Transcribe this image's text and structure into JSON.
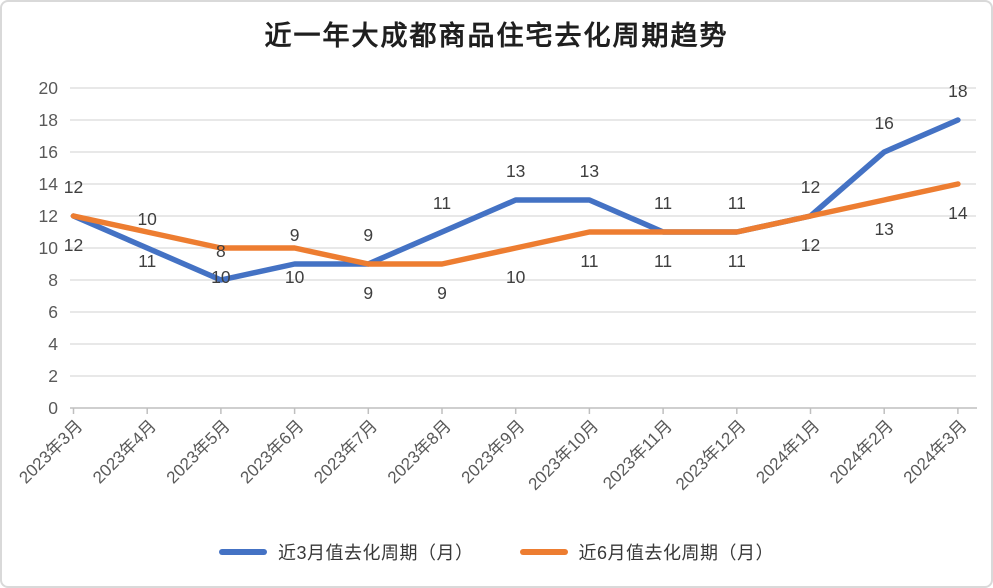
{
  "title": "近一年大成都商品住宅去化周期趋势",
  "chart_data": {
    "type": "line",
    "title": "近一年大成都商品住宅去化周期趋势",
    "categories": [
      "2023年3月",
      "2023年4月",
      "2023年5月",
      "2023年6月",
      "2023年7月",
      "2023年8月",
      "2023年9月",
      "2023年10月",
      "2023年11月",
      "2023年12月",
      "2024年1月",
      "2024年2月",
      "2024年3月"
    ],
    "series": [
      {
        "name": "近3月值去化周期（月）",
        "color": "#4472C4",
        "values": [
          12,
          10,
          8,
          9,
          9,
          11,
          13,
          13,
          11,
          11,
          12,
          16,
          18
        ],
        "label_position": "above"
      },
      {
        "name": "近6月值去化周期（月）",
        "color": "#ED7D31",
        "values": [
          12,
          11,
          10,
          10,
          9,
          9,
          10,
          11,
          11,
          11,
          12,
          13,
          14
        ],
        "label_position": "below"
      }
    ],
    "ylim": [
      0,
      20
    ],
    "ytick_step": 2,
    "grid": "horizontal",
    "legend_position": "bottom",
    "data_labels": true
  },
  "colors": {
    "grid": "#D9D9D9",
    "axis": "#BFBFBF",
    "axis_text": "#595959",
    "label_text": "#3F3F3F",
    "title_text": "#1F1F1F",
    "card_border": "#D9D9D9",
    "background": "#FFFFFF"
  }
}
